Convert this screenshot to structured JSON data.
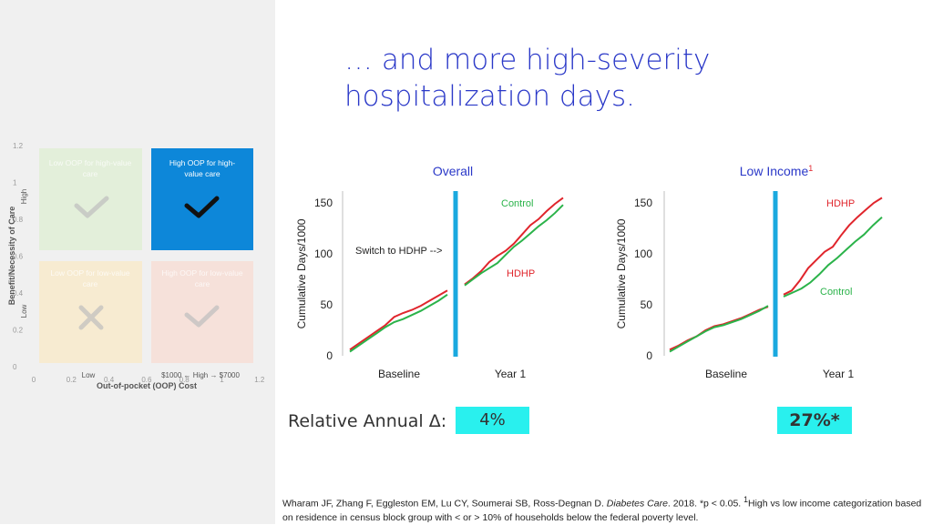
{
  "slide": {
    "title_line1": "… and more high-severity",
    "title_line2": "hospitalization days.",
    "relative_label": "Relative Annual Δ:",
    "overall_delta": "4%",
    "low_income_delta": "27%*",
    "citation": {
      "authors": "Wharam JF, Zhang F, Eggleston EM, Lu CY, Soumerai SB, Ross-Degnan D. ",
      "journal": "Diabetes Care",
      "rest1": ". 2018. *p < 0.05. ",
      "sup": "1",
      "rest2": "High vs low income categorization based on residence in census block group with < or > 10% of households below the federal poverty level."
    }
  },
  "colors": {
    "hdhp": "#e0252c",
    "control": "#2bb34a",
    "divider": "#1aa9df",
    "highlight": "#29f0ee",
    "title": "#2a38c8"
  },
  "matrix": {
    "y_axis_label": "Benefit/Necessity of Care",
    "y_high": "High",
    "y_low": "Low",
    "x_axis_label": "Out-of-pocket (OOP) Cost",
    "x_low": "Low",
    "x_high": "$1000 ← High → $7000",
    "y_ticks": [
      "0",
      "0.2",
      "0.4",
      "0.6",
      "0.8",
      "1",
      "1.2"
    ],
    "x_ticks": [
      "0",
      "0.2",
      "0.4",
      "0.6",
      "0.8",
      "1",
      "1.2"
    ],
    "cells": [
      {
        "line1": "Low OOP for high-value",
        "line2": "care",
        "icon": "check-icon",
        "color": "#d9efc9",
        "opacity": 0.55
      },
      {
        "line1": "High OOP for high-",
        "line2": "value care",
        "icon": "check-icon",
        "color": "#0d87d9",
        "opacity": 1
      },
      {
        "line1": "Low OOP for low-value",
        "line2": "care",
        "icon": "x-icon",
        "color": "#fde7b8",
        "opacity": 0.55
      },
      {
        "line1": "High OOP for low-value",
        "line2": "care",
        "icon": "check-icon",
        "color": "#fbd5c9",
        "opacity": 0.55
      }
    ]
  },
  "chart_data": [
    {
      "type": "line",
      "title": "Overall",
      "ylabel": "Cumulative Days/1000",
      "ylim": [
        0,
        150
      ],
      "yticks": [
        "0",
        "50",
        "100",
        "150"
      ],
      "period_labels": [
        "Baseline",
        "Year 1"
      ],
      "annotation": "Switch to HDHP -->",
      "series": [
        {
          "name": "HDHP",
          "baseline": [
            6,
            12,
            18,
            24,
            30,
            38,
            42,
            45,
            49,
            54,
            59,
            64
          ],
          "year1": [
            70,
            76,
            83,
            92,
            98,
            103,
            110,
            119,
            128,
            134,
            142,
            149,
            155
          ]
        },
        {
          "name": "Control",
          "baseline": [
            4,
            10,
            16,
            22,
            28,
            33,
            36,
            40,
            44,
            49,
            54,
            60
          ],
          "year1": [
            69,
            75,
            81,
            86,
            91,
            99,
            107,
            113,
            120,
            127,
            133,
            140,
            148
          ]
        }
      ],
      "series_labels": [
        "Control",
        "HDHP"
      ]
    },
    {
      "type": "line",
      "title": "Low Income",
      "title_sup": "1",
      "ylabel": "Cumulative Days/1000",
      "ylim": [
        0,
        150
      ],
      "yticks": [
        "0",
        "50",
        "100",
        "150"
      ],
      "period_labels": [
        "Baseline",
        "Year 1"
      ],
      "series": [
        {
          "name": "HDHP",
          "baseline": [
            6,
            10,
            15,
            19,
            25,
            29,
            31,
            34,
            37,
            41,
            45,
            48
          ],
          "year1": [
            60,
            64,
            74,
            86,
            94,
            102,
            107,
            118,
            128,
            136,
            143,
            150,
            155
          ]
        },
        {
          "name": "Control",
          "baseline": [
            4,
            9,
            14,
            19,
            24,
            28,
            30,
            33,
            36,
            40,
            44,
            49
          ],
          "year1": [
            58,
            62,
            66,
            72,
            80,
            89,
            96,
            104,
            112,
            119,
            128,
            136
          ]
        }
      ],
      "series_labels": [
        "HDHP",
        "Control"
      ]
    }
  ]
}
